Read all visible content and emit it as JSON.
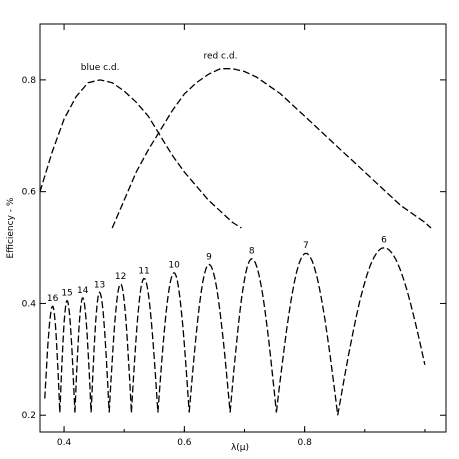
{
  "chart_data": {
    "type": "line",
    "title": "",
    "xlabel": "λ(μ)",
    "ylabel": "Efficiency - %",
    "xlim": [
      0.36,
      1.035
    ],
    "ylim": [
      0.17,
      0.9
    ],
    "xticks": [
      0.4,
      0.6,
      0.8
    ],
    "xtick_labels": [
      "0.4",
      "0.6",
      "0.8"
    ],
    "yticks": [
      0.2,
      0.4,
      0.6,
      0.8
    ],
    "ytick_labels": [
      "0.2",
      "0.4",
      "0.6",
      "0.8"
    ],
    "grid": false,
    "legend": "none",
    "series": [
      {
        "name": "blue c.d.",
        "x": [
          0.36,
          0.38,
          0.4,
          0.42,
          0.44,
          0.46,
          0.48,
          0.5,
          0.52,
          0.54,
          0.56,
          0.58,
          0.6,
          0.62,
          0.64,
          0.66,
          0.68,
          0.695
        ],
        "y": [
          0.6,
          0.67,
          0.73,
          0.77,
          0.795,
          0.8,
          0.795,
          0.78,
          0.76,
          0.735,
          0.7,
          0.665,
          0.635,
          0.61,
          0.585,
          0.565,
          0.545,
          0.535
        ]
      },
      {
        "name": "red c.d.",
        "x": [
          0.48,
          0.5,
          0.52,
          0.54,
          0.56,
          0.58,
          0.6,
          0.62,
          0.64,
          0.66,
          0.68,
          0.7,
          0.72,
          0.74,
          0.76,
          0.78,
          0.8,
          0.82,
          0.84,
          0.86,
          0.88,
          0.9,
          0.92,
          0.94,
          0.96,
          0.98,
          1.0,
          1.01
        ],
        "y": [
          0.535,
          0.585,
          0.635,
          0.675,
          0.71,
          0.745,
          0.775,
          0.795,
          0.81,
          0.82,
          0.82,
          0.815,
          0.805,
          0.79,
          0.775,
          0.755,
          0.735,
          0.715,
          0.695,
          0.675,
          0.655,
          0.635,
          0.615,
          0.595,
          0.575,
          0.56,
          0.545,
          0.535
        ]
      }
    ],
    "orders": [
      {
        "label": "16",
        "start": 0.368,
        "peak": 0.381,
        "end": 0.393,
        "peak_value": 0.395,
        "start_value": 0.23,
        "end_value": 0.205
      },
      {
        "label": "15",
        "start": 0.393,
        "peak": 0.405,
        "end": 0.418,
        "peak_value": 0.405,
        "start_value": 0.205,
        "end_value": 0.205
      },
      {
        "label": "14",
        "start": 0.418,
        "peak": 0.431,
        "end": 0.445,
        "peak_value": 0.41,
        "start_value": 0.205,
        "end_value": 0.205
      },
      {
        "label": "13",
        "start": 0.445,
        "peak": 0.459,
        "end": 0.475,
        "peak_value": 0.42,
        "start_value": 0.205,
        "end_value": 0.205
      },
      {
        "label": "12",
        "start": 0.475,
        "peak": 0.494,
        "end": 0.512,
        "peak_value": 0.435,
        "start_value": 0.205,
        "end_value": 0.205
      },
      {
        "label": "11",
        "start": 0.512,
        "peak": 0.533,
        "end": 0.556,
        "peak_value": 0.445,
        "start_value": 0.205,
        "end_value": 0.205
      },
      {
        "label": "10",
        "start": 0.556,
        "peak": 0.583,
        "end": 0.608,
        "peak_value": 0.455,
        "start_value": 0.205,
        "end_value": 0.205
      },
      {
        "label": "9",
        "start": 0.608,
        "peak": 0.641,
        "end": 0.676,
        "peak_value": 0.47,
        "start_value": 0.205,
        "end_value": 0.205
      },
      {
        "label": "8",
        "start": 0.676,
        "peak": 0.712,
        "end": 0.753,
        "peak_value": 0.48,
        "start_value": 0.205,
        "end_value": 0.205
      },
      {
        "label": "7",
        "start": 0.753,
        "peak": 0.802,
        "end": 0.855,
        "peak_value": 0.49,
        "start_value": 0.205,
        "end_value": 0.2
      },
      {
        "label": "6",
        "start": 0.855,
        "peak": 0.932,
        "end": 1.0,
        "peak_value": 0.5,
        "start_value": 0.2,
        "end_value": 0.29
      }
    ]
  }
}
